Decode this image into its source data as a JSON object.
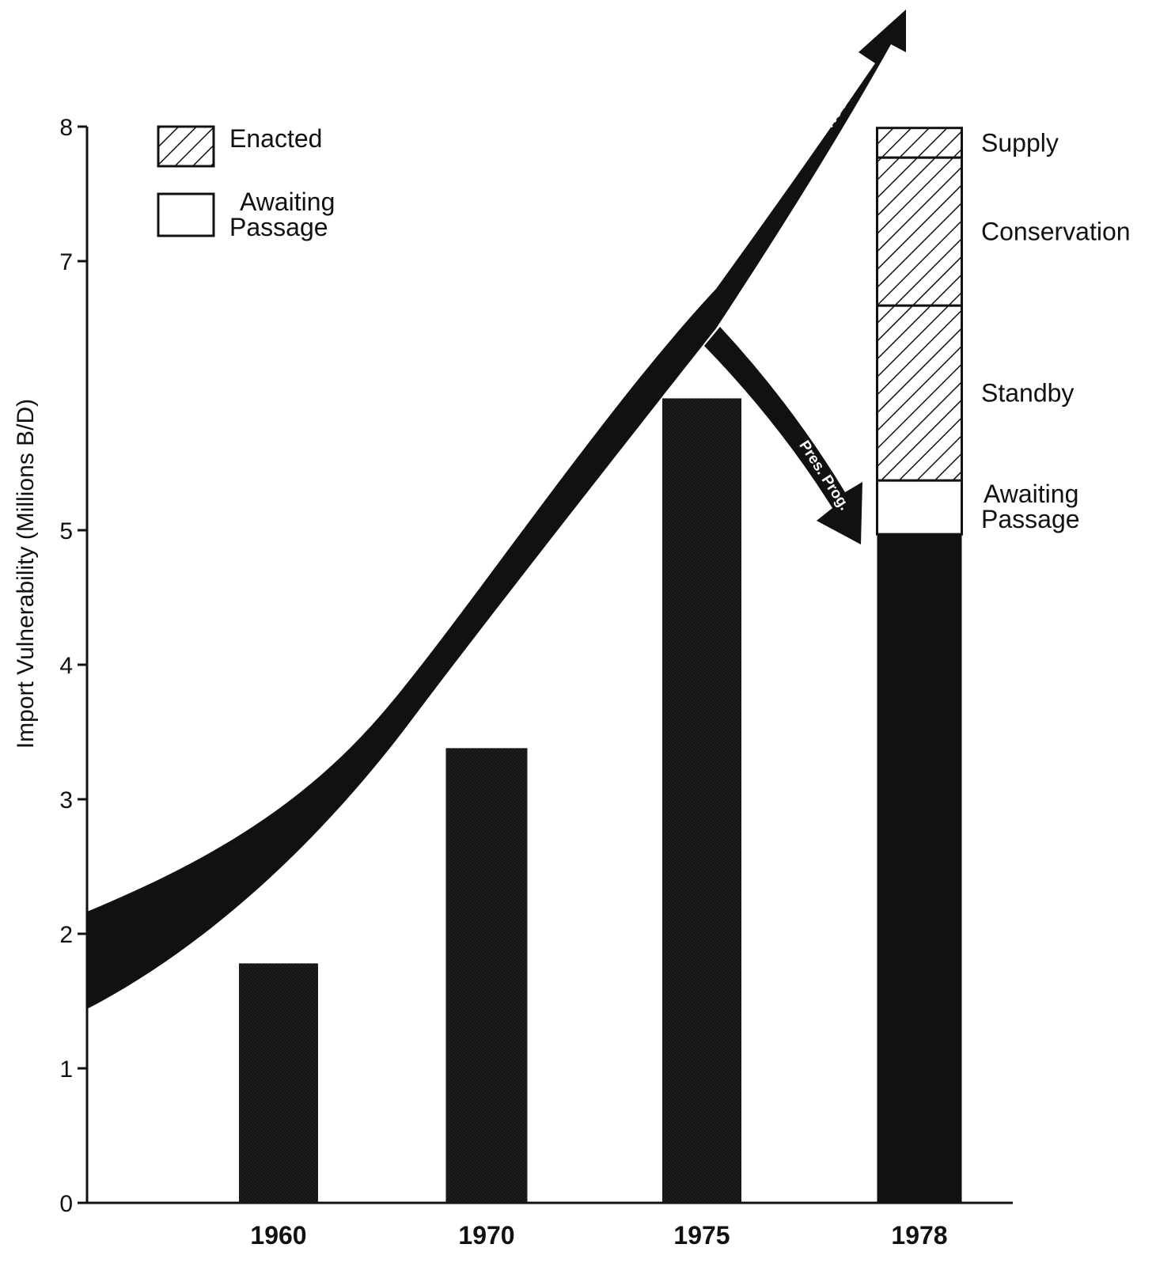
{
  "chart_data": {
    "type": "bar",
    "ylabel": "Import Vulnerability (Millions B/D)",
    "ylim": [
      0,
      8
    ],
    "y_ticks": [
      "0",
      "1",
      "2",
      "3",
      "4",
      "5",
      "7",
      "8"
    ],
    "categories": [
      "1960",
      "1970",
      "1975",
      "1978"
    ],
    "values": [
      1.78,
      3.38,
      5.98,
      4.97
    ],
    "stack_1978": [
      {
        "name": "Awaiting Passage",
        "value": 0.4,
        "fill": "white"
      },
      {
        "name": "Standby",
        "value": 1.3,
        "fill": "hatched"
      },
      {
        "name": "Conservation",
        "value": 1.1,
        "fill": "hatched"
      },
      {
        "name": "Supply",
        "value": 0.22,
        "fill": "hatched"
      }
    ],
    "legend": [
      {
        "name": "Enacted",
        "fill": "hatched"
      },
      {
        "name": "Awaiting Passage",
        "fill": "white"
      }
    ],
    "annotations": {
      "no_action": "No Action",
      "pres_prog": "Pres. Prog."
    },
    "colors": {
      "bar": "#1a1a1a",
      "ink": "#111111"
    }
  }
}
